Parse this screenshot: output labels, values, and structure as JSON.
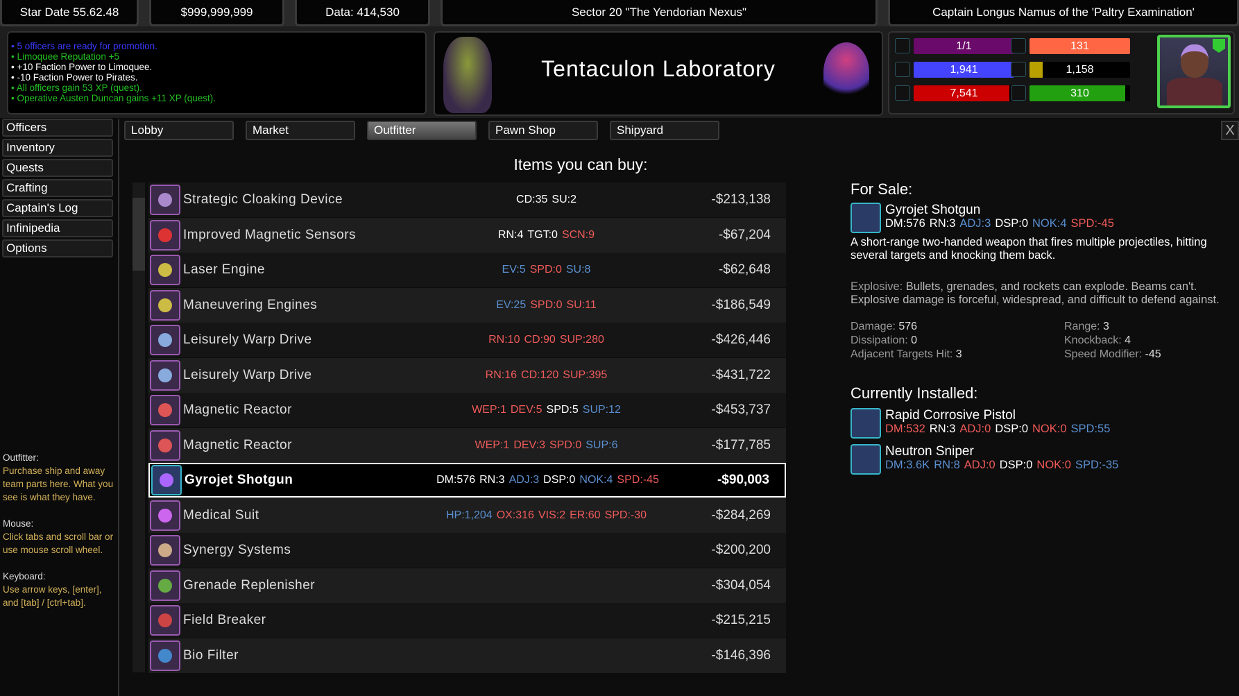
{
  "topbar": {
    "stardate": "Star Date 55.62.48",
    "money": "$999,999,999",
    "data": "Data: 414,530",
    "sector": "Sector 20 \"The Yendorian Nexus\"",
    "captain": "Captain Longus Namus of the 'Paltry Examination'"
  },
  "log": [
    {
      "text": "5 officers are ready for promotion.",
      "color": "#3a3aff"
    },
    {
      "text": "Limoquee Reputation +5",
      "color": "#22c022"
    },
    {
      "text": "+10 Faction Power to Limoquee.",
      "color": "#ffffff"
    },
    {
      "text": "-10 Faction Power to Pirates.",
      "color": "#ffffff"
    },
    {
      "text": "All officers gain 53 XP (quest).",
      "color": "#22c022"
    },
    {
      "text": "Operative Austen Duncan gains +11 XP (quest).",
      "color": "#22c022"
    }
  ],
  "location": {
    "title": "Tentaculon Laboratory"
  },
  "stats": [
    {
      "icon": "crew-capacity-icon",
      "value": "1/1",
      "color": "#6a0a6a",
      "fill": 1.0
    },
    {
      "icon": "officers-icon",
      "value": "131",
      "color": "#ff6644",
      "fill": 1.0
    },
    {
      "icon": "shield-icon",
      "value": "1,941",
      "color": "#4444ff",
      "fill": 1.0
    },
    {
      "icon": "fuel-icon",
      "value": "1,158",
      "color": "#b8a000",
      "fill": 0.13
    },
    {
      "icon": "hull-icon",
      "value": "7,541",
      "color": "#cc0000",
      "fill": 0.95
    },
    {
      "icon": "speed-icon",
      "value": "310",
      "color": "#22a010",
      "fill": 0.95
    }
  ],
  "sidebar": [
    "Officers",
    "Inventory",
    "Quests",
    "Crafting",
    "Captain's Log",
    "Infinipedia",
    "Options"
  ],
  "help": [
    {
      "h": "Outfitter:",
      "t": "Purchase ship and away team parts here. What you see is what they have."
    },
    {
      "h": "Mouse:",
      "t": "Click tabs and scroll bar or use mouse scroll wheel."
    },
    {
      "h": "Keyboard:",
      "t": "Use arrow keys, [enter], and [tab] / [ctrl+tab]."
    }
  ],
  "tabs": [
    {
      "label": "Lobby"
    },
    {
      "label": "Market"
    },
    {
      "label": "Outfitter",
      "active": true
    },
    {
      "label": "Pawn Shop"
    },
    {
      "label": "Shipyard"
    }
  ],
  "close_label": "X",
  "list_title": "Items you can buy:",
  "items": [
    {
      "name": "Strategic Cloaking Device",
      "icon": "cloaking-device-icon",
      "color": "#a8c",
      "stats": [
        [
          "CD:35",
          "w"
        ],
        [
          "SU:2",
          "w"
        ]
      ],
      "price": "-$213,138"
    },
    {
      "name": "Improved Magnetic Sensors",
      "icon": "sensor-icon",
      "color": "#d33",
      "stats": [
        [
          "RN:4",
          "w"
        ],
        [
          "TGT:0",
          "w"
        ],
        [
          "SCN:9",
          "r"
        ]
      ],
      "price": "-$67,204"
    },
    {
      "name": "Laser Engine",
      "icon": "engine-icon",
      "color": "#cb4",
      "stats": [
        [
          "EV:5",
          "b"
        ],
        [
          "SPD:0",
          "r"
        ],
        [
          "SU:8",
          "b"
        ]
      ],
      "price": "-$62,648"
    },
    {
      "name": "Maneuvering Engines",
      "icon": "engine-icon",
      "color": "#cb4",
      "stats": [
        [
          "EV:25",
          "b"
        ],
        [
          "SPD:0",
          "r"
        ],
        [
          "SU:11",
          "r"
        ]
      ],
      "price": "-$186,549"
    },
    {
      "name": "Leisurely Warp Drive",
      "icon": "warp-drive-icon",
      "color": "#8ad",
      "stats": [
        [
          "RN:10",
          "r"
        ],
        [
          "CD:90",
          "r"
        ],
        [
          "SUP:280",
          "r"
        ]
      ],
      "price": "-$426,446"
    },
    {
      "name": "Leisurely Warp Drive",
      "icon": "warp-drive-icon",
      "color": "#8ad",
      "stats": [
        [
          "RN:16",
          "r"
        ],
        [
          "CD:120",
          "r"
        ],
        [
          "SUP:395",
          "r"
        ]
      ],
      "price": "-$431,722"
    },
    {
      "name": "Magnetic Reactor",
      "icon": "reactor-icon",
      "color": "#d55",
      "stats": [
        [
          "WEP:1",
          "r"
        ],
        [
          "DEV:5",
          "r"
        ],
        [
          "SPD:5",
          "w"
        ],
        [
          "SUP:12",
          "b"
        ]
      ],
      "price": "-$453,737"
    },
    {
      "name": "Magnetic Reactor",
      "icon": "reactor-icon",
      "color": "#d55",
      "stats": [
        [
          "WEP:1",
          "r"
        ],
        [
          "DEV:3",
          "r"
        ],
        [
          "SPD:0",
          "r"
        ],
        [
          "SUP:6",
          "b"
        ]
      ],
      "price": "-$177,785"
    },
    {
      "name": "Gyrojet Shotgun",
      "icon": "shotgun-icon",
      "color": "#a6f",
      "selected": true,
      "stats": [
        [
          "DM:576",
          "w"
        ],
        [
          "RN:3",
          "w"
        ],
        [
          "ADJ:3",
          "b"
        ],
        [
          "DSP:0",
          "w"
        ],
        [
          "NOK:4",
          "b"
        ],
        [
          "SPD:-45",
          "r"
        ]
      ],
      "price": "-$90,003"
    },
    {
      "name": "Medical Suit",
      "icon": "medical-suit-icon",
      "color": "#c6e",
      "stats": [
        [
          "HP:1,204",
          "b"
        ],
        [
          "OX:316",
          "r"
        ],
        [
          "VIS:2",
          "r"
        ],
        [
          "ER:60",
          "r"
        ],
        [
          "SPD:-30",
          "r"
        ]
      ],
      "price": "-$284,269"
    },
    {
      "name": "Synergy Systems",
      "icon": "synergy-systems-icon",
      "color": "#ca8",
      "stats": [],
      "price": "-$200,200"
    },
    {
      "name": "Grenade Replenisher",
      "icon": "grenade-icon",
      "color": "#6a4",
      "stats": [],
      "price": "-$304,054"
    },
    {
      "name": "Field Breaker",
      "icon": "field-breaker-icon",
      "color": "#c44",
      "stats": [],
      "price": "-$215,215"
    },
    {
      "name": "Bio Filter",
      "icon": "bio-filter-icon",
      "color": "#48c",
      "stats": [],
      "price": "-$146,396"
    }
  ],
  "detail": {
    "for_sale_label": "For Sale:",
    "item": {
      "name": "Gyrojet Shotgun",
      "stats": [
        [
          "DM:576",
          "w"
        ],
        [
          "RN:3",
          "w"
        ],
        [
          "ADJ:3",
          "b"
        ],
        [
          "DSP:0",
          "w"
        ],
        [
          "NOK:4",
          "b"
        ],
        [
          "SPD:-45",
          "r"
        ]
      ]
    },
    "description": "A short-range two-handed weapon that fires multiple projectiles, hitting several targets and knocking them back.",
    "explosive_label": "Explosive:",
    "explosive_text": "Bullets, grenades, and rockets can explode. Beams can't. Explosive damage is forceful, widespread, and difficult to defend against.",
    "attrs": [
      [
        "Damage:",
        "576"
      ],
      [
        "Range:",
        "3"
      ],
      [
        "Dissipation:",
        "0"
      ],
      [
        "Knockback:",
        "4"
      ],
      [
        "Adjacent Targets Hit:",
        "3"
      ],
      [
        "Speed Modifier:",
        "-45"
      ]
    ],
    "installed_label": "Currently Installed:",
    "installed": [
      {
        "name": "Rapid Corrosive Pistol",
        "icon": "pistol-icon",
        "stats": [
          [
            "DM:532",
            "r"
          ],
          [
            "RN:3",
            "w"
          ],
          [
            "ADJ:0",
            "r"
          ],
          [
            "DSP:0",
            "w"
          ],
          [
            "NOK:0",
            "r"
          ],
          [
            "SPD:55",
            "b"
          ]
        ]
      },
      {
        "name": "Neutron Sniper",
        "icon": "sniper-icon",
        "stats": [
          [
            "DM:3.6K",
            "b"
          ],
          [
            "RN:8",
            "b"
          ],
          [
            "ADJ:0",
            "r"
          ],
          [
            "DSP:0",
            "w"
          ],
          [
            "NOK:0",
            "r"
          ],
          [
            "SPD:-35",
            "b"
          ]
        ]
      }
    ]
  }
}
